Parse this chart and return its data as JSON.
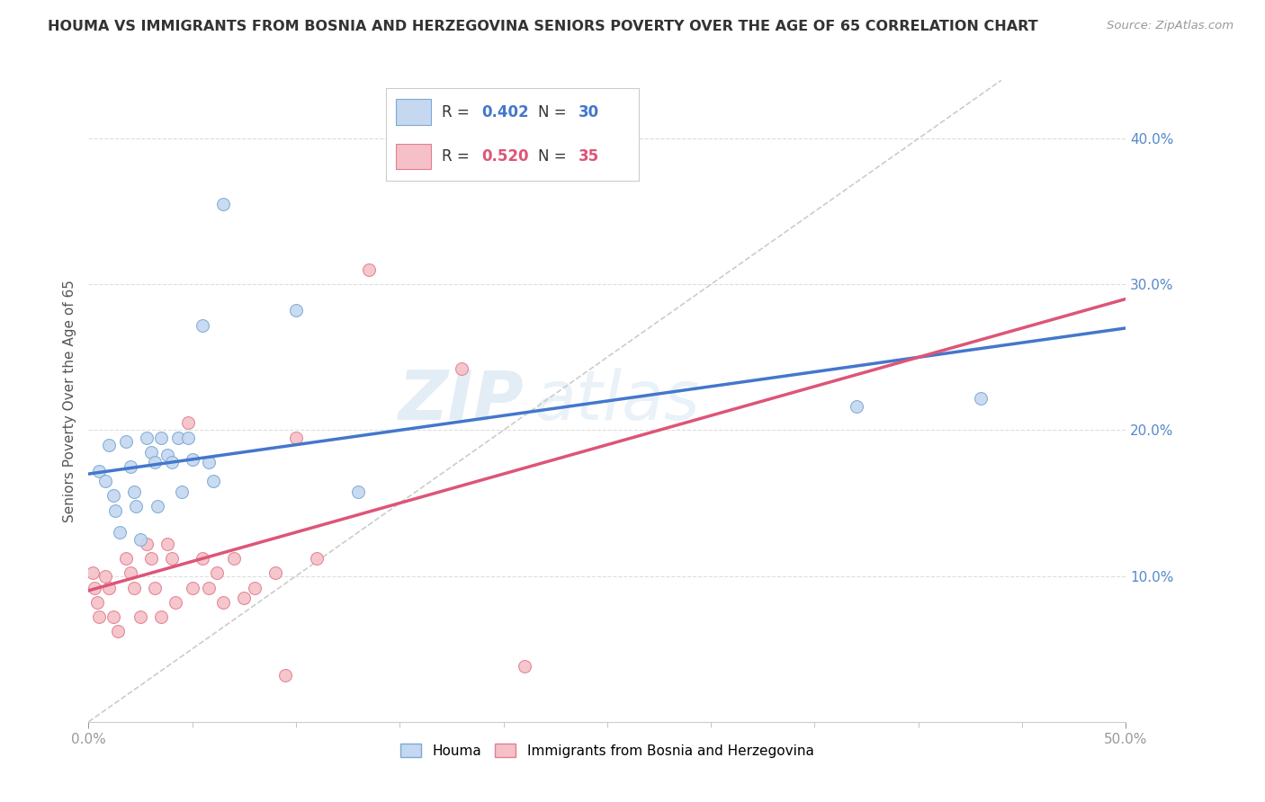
{
  "title": "HOUMA VS IMMIGRANTS FROM BOSNIA AND HERZEGOVINA SENIORS POVERTY OVER THE AGE OF 65 CORRELATION CHART",
  "source": "Source: ZipAtlas.com",
  "ylabel": "Seniors Poverty Over the Age of 65",
  "xlim": [
    0,
    0.5
  ],
  "ylim": [
    0,
    0.44
  ],
  "yticks": [
    0.1,
    0.2,
    0.3,
    0.4
  ],
  "background_color": "#ffffff",
  "watermark_text": "ZIP",
  "watermark_text2": "atlas",
  "houma_color": "#c5d8f0",
  "houma_edge_color": "#7aaad4",
  "bosnia_color": "#f5c0c8",
  "bosnia_edge_color": "#e08090",
  "houma_R": 0.402,
  "houma_N": 30,
  "bosnia_R": 0.52,
  "bosnia_N": 35,
  "houma_line_color": "#4477cc",
  "bosnia_line_color": "#dd5577",
  "diagonal_color": "#cccccc",
  "houma_x": [
    0.005,
    0.008,
    0.01,
    0.012,
    0.013,
    0.015,
    0.018,
    0.02,
    0.022,
    0.023,
    0.025,
    0.028,
    0.03,
    0.032,
    0.033,
    0.035,
    0.038,
    0.04,
    0.043,
    0.045,
    0.048,
    0.05,
    0.055,
    0.058,
    0.06,
    0.065,
    0.1,
    0.13,
    0.37,
    0.43
  ],
  "houma_y": [
    0.172,
    0.165,
    0.19,
    0.155,
    0.145,
    0.13,
    0.192,
    0.175,
    0.158,
    0.148,
    0.125,
    0.195,
    0.185,
    0.178,
    0.148,
    0.195,
    0.183,
    0.178,
    0.195,
    0.158,
    0.195,
    0.18,
    0.272,
    0.178,
    0.165,
    0.355,
    0.282,
    0.158,
    0.216,
    0.222
  ],
  "bosnia_x": [
    0.002,
    0.003,
    0.004,
    0.005,
    0.008,
    0.01,
    0.012,
    0.014,
    0.018,
    0.02,
    0.022,
    0.025,
    0.028,
    0.03,
    0.032,
    0.035,
    0.038,
    0.04,
    0.042,
    0.048,
    0.05,
    0.055,
    0.058,
    0.062,
    0.065,
    0.07,
    0.075,
    0.08,
    0.09,
    0.095,
    0.1,
    0.11,
    0.135,
    0.18,
    0.21
  ],
  "bosnia_y": [
    0.102,
    0.092,
    0.082,
    0.072,
    0.1,
    0.092,
    0.072,
    0.062,
    0.112,
    0.102,
    0.092,
    0.072,
    0.122,
    0.112,
    0.092,
    0.072,
    0.122,
    0.112,
    0.082,
    0.205,
    0.092,
    0.112,
    0.092,
    0.102,
    0.082,
    0.112,
    0.085,
    0.092,
    0.102,
    0.032,
    0.195,
    0.112,
    0.31,
    0.242,
    0.038
  ],
  "marker_size": 100,
  "legend_R_color": "#4477cc",
  "legend_N_color": "#4477cc",
  "legend_R2_color": "#dd5577",
  "legend_N2_color": "#dd5577"
}
